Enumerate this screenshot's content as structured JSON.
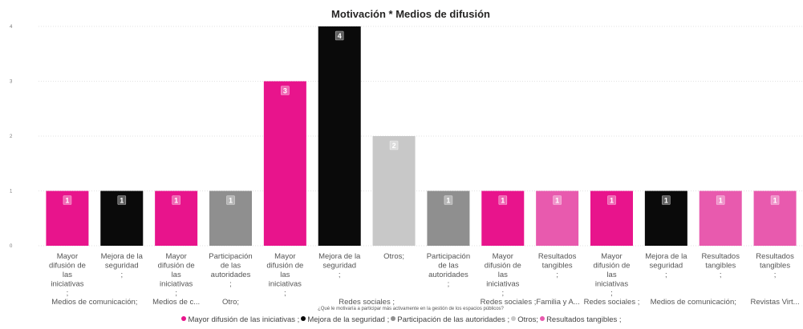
{
  "chart_data": {
    "type": "bar",
    "title": "Motivación * Medios de difusión",
    "xlabel": "¿Qué le motivaría a participar más activamente en la gestión de los espacios públicos?",
    "ylabel": "",
    "ylim": [
      0,
      4
    ],
    "yticks": [
      "0",
      "1",
      "2",
      "3",
      "4"
    ],
    "bars": [
      {
        "label": "Mayor difusión de las iniciativas ;",
        "value": 1,
        "color": "#e8148c",
        "value_label": "1"
      },
      {
        "label": "Mejora de la seguridad ;",
        "value": 1,
        "color": "#0a0a0a",
        "value_label": "1"
      },
      {
        "label": "Mayor difusión de las iniciativas ;",
        "value": 1,
        "color": "#e8148c",
        "value_label": "1"
      },
      {
        "label": "Participación de las autoridades ;",
        "value": 1,
        "color": "#8f8f8f",
        "value_label": "1"
      },
      {
        "label": "Mayor difusión de las iniciativas ;",
        "value": 3,
        "color": "#e8148c",
        "value_label": "3"
      },
      {
        "label": "Mejora de la seguridad ;",
        "value": 4,
        "color": "#0a0a0a",
        "value_label": "4"
      },
      {
        "label": "Otros;",
        "value": 2,
        "color": "#c8c8c8",
        "value_label": "2"
      },
      {
        "label": "Participación de las autoridades ;",
        "value": 1,
        "color": "#8f8f8f",
        "value_label": "1"
      },
      {
        "label": "Mayor difusión de las iniciativas ;",
        "value": 1,
        "color": "#e8148c",
        "value_label": "1"
      },
      {
        "label": "Resultados tangibles ;",
        "value": 1,
        "color": "#e85aae",
        "value_label": "1"
      },
      {
        "label": "Mayor difusión de las iniciativas ;",
        "value": 1,
        "color": "#e8148c",
        "value_label": "1"
      },
      {
        "label": "Mejora de la seguridad ;",
        "value": 1,
        "color": "#0a0a0a",
        "value_label": "1"
      },
      {
        "label": "Resultados tangibles ;",
        "value": 1,
        "color": "#e85aae",
        "value_label": "1"
      },
      {
        "label": "Resultados tangibles ;",
        "value": 1,
        "color": "#e85aae",
        "value_label": "1"
      }
    ],
    "groups": [
      {
        "label": "Medios de comunicación;",
        "bars": [
          0,
          1
        ]
      },
      {
        "label": "Medios de c...",
        "bars": [
          2,
          2
        ]
      },
      {
        "label": "Otro;",
        "bars": [
          3,
          3
        ]
      },
      {
        "label": "Redes sociales ;",
        "bars": [
          4,
          7
        ]
      },
      {
        "label": "Redes sociales ;Familia y A...",
        "bars": [
          8,
          9
        ]
      },
      {
        "label": "Redes sociales ;",
        "bars": [
          10,
          10
        ]
      },
      {
        "label": "Medios de comunicación;",
        "bars": [
          11,
          12
        ]
      },
      {
        "label": "Revistas Virt...",
        "bars": [
          13,
          13
        ]
      }
    ],
    "legend": [
      {
        "label": "Mayor difusión de las iniciativas ;",
        "color": "#e8148c"
      },
      {
        "label": "Mejora de la seguridad ;",
        "color": "#0a0a0a"
      },
      {
        "label": "Participación de las autoridades ;",
        "color": "#8f8f8f"
      },
      {
        "label": "Otros;",
        "color": "#c8c8c8"
      },
      {
        "label": "Resultados tangibles ;",
        "color": "#e85aae"
      }
    ]
  }
}
